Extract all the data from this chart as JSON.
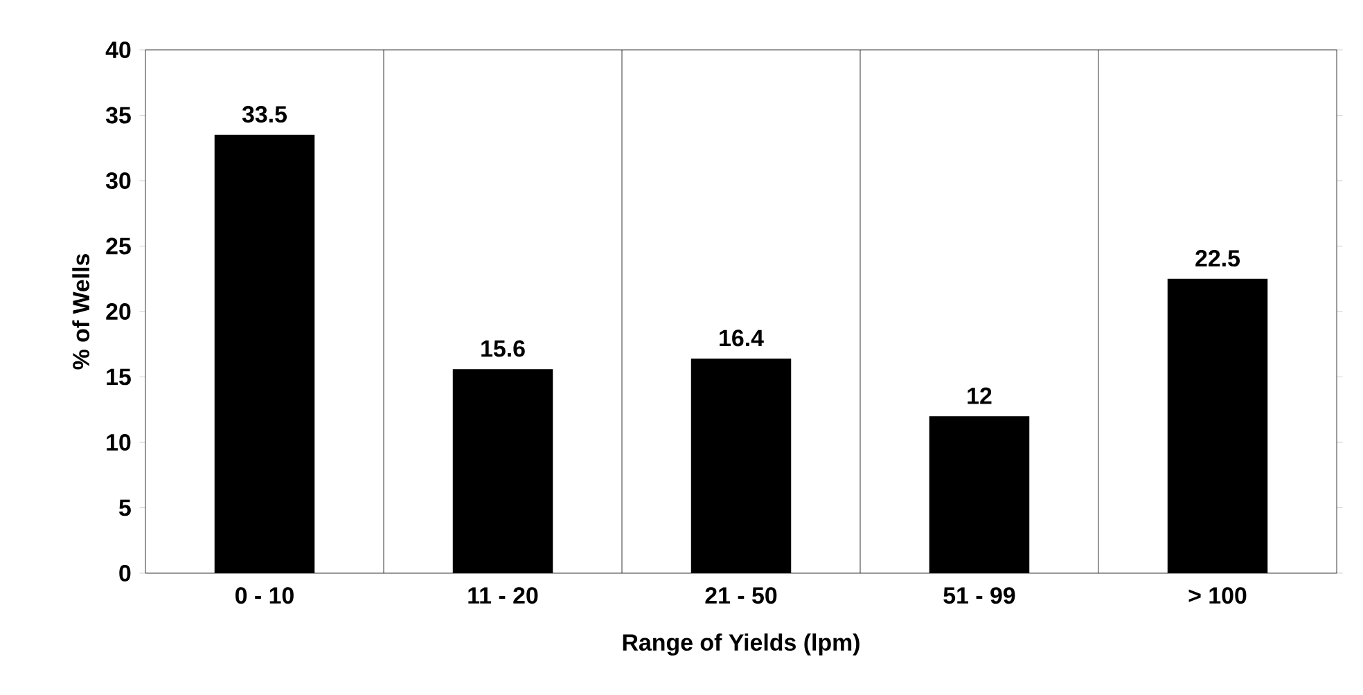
{
  "chart_data": {
    "type": "bar",
    "xlabel": "Range of Yields (lpm)",
    "ylabel": "% of Wells",
    "categories": [
      "0 - 10",
      "11 - 20",
      "21 - 50",
      "51 - 99",
      "> 100"
    ],
    "values": [
      33.5,
      15.6,
      16.4,
      12,
      22.5
    ],
    "color": "#000000",
    "ylim": [
      0,
      40
    ],
    "yticks": [
      0,
      5,
      10,
      15,
      20,
      25,
      30,
      35,
      40
    ],
    "grid": "x",
    "data_labels": true
  }
}
